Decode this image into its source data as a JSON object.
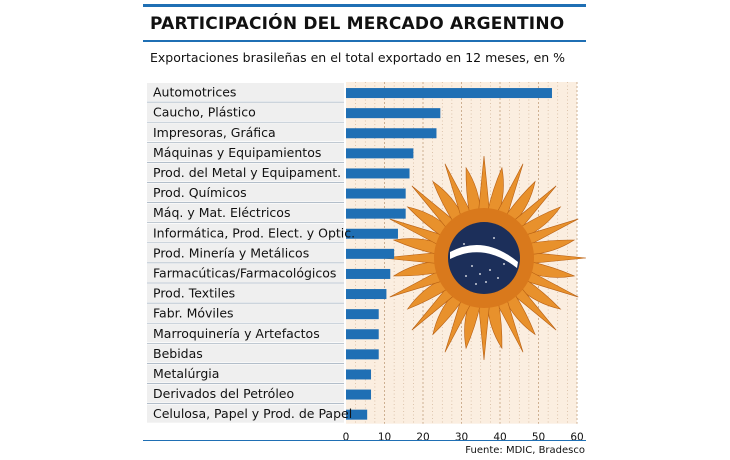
{
  "title": "PARTICIPACIÓN DEL MERCADO ARGENTINO",
  "subtitle": "Exportaciones brasileñas en el total exportado en 12 meses, en %",
  "source": "Fuente: MDIC, Bradesco",
  "colors": {
    "bar": "#1f6fb4",
    "accent_rule": "#1f6fb4",
    "plot_background": "#fbeee0",
    "grid": "#c9a98a",
    "label_band": "#efefef",
    "sun_rays": "#e8912c",
    "globe": "#1c2f5a"
  },
  "decoration": {
    "icon": "sun-of-may-with-brazil-globe-icon"
  },
  "chart_data": {
    "type": "bar",
    "orientation": "horizontal",
    "title": "PARTICIPACIÓN DEL MERCADO ARGENTINO",
    "subtitle": "Exportaciones brasileñas en el total exportado en 12 meses, en %",
    "categories": [
      "Automotrices",
      "Caucho, Plástico",
      "Impresoras, Gráfica",
      "Máquinas y Equipamientos",
      "Prod. del Metal y Equipament.",
      "Prod. Químicos",
      "Máq. y Mat. Eléctricos",
      "Informática, Prod. Elect. y Optic.",
      "Prod. Minería y Metálicos",
      "Farmacúticas/Farmacológicos",
      "Prod. Textiles",
      "Fabr. Móviles",
      "Marroquinería y Artefactos",
      "Bebidas",
      "Metalúrgia",
      "Derivados del Petróleo",
      "Celulosa, Papel y Prod. de Papel"
    ],
    "values": [
      53.5,
      24.5,
      23.5,
      17.5,
      16.5,
      15.5,
      15.5,
      13.5,
      12.5,
      11.5,
      10.5,
      8.5,
      8.5,
      8.5,
      6.5,
      6.5,
      5.5
    ],
    "xlim": [
      0,
      60
    ],
    "xticks": [
      0,
      10,
      20,
      30,
      40,
      50,
      60
    ],
    "grid": true
  }
}
